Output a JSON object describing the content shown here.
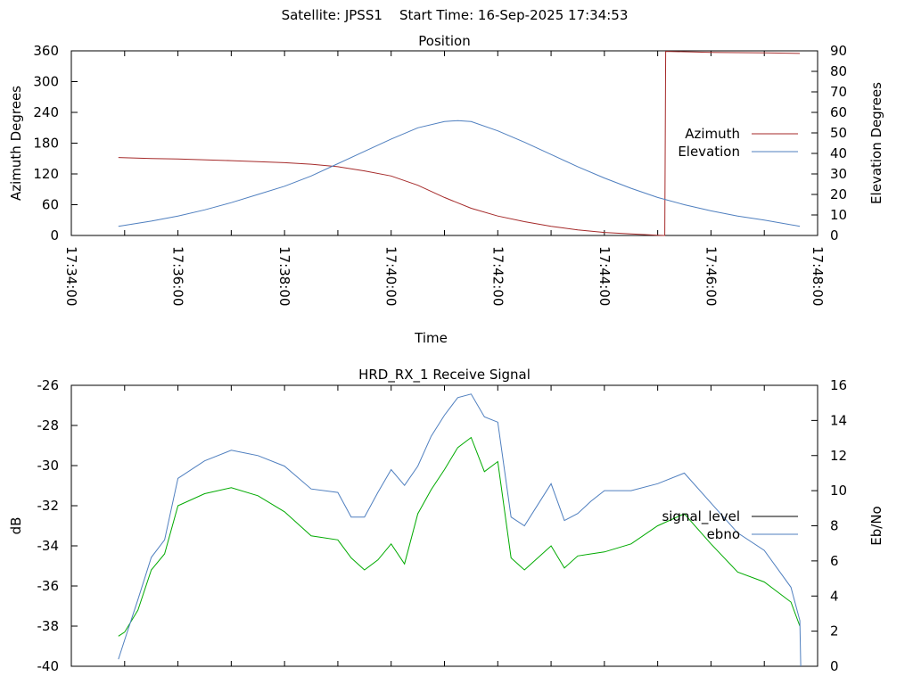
{
  "page_title": "Satellite: JPSS1    Start Time: 16-Sep-2025 17:34:53",
  "chart_data": [
    {
      "type": "line",
      "title": "Position",
      "xlabel": "Time",
      "ylabel": "Azimuth Degrees",
      "y2label": "Elevation Degrees",
      "x_ticks": [
        "17:34:00",
        "17:36:00",
        "17:38:00",
        "17:40:00",
        "17:42:00",
        "17:44:00",
        "17:46:00",
        "17:48:00"
      ],
      "xlim": [
        "17:34:00",
        "17:48:00"
      ],
      "ylim": [
        0,
        360
      ],
      "y_ticks": [
        0,
        60,
        120,
        180,
        240,
        300,
        360
      ],
      "y2lim": [
        0,
        90
      ],
      "y2_ticks": [
        0,
        10,
        20,
        30,
        40,
        50,
        60,
        70,
        80,
        90
      ],
      "grid": false,
      "legend": "right",
      "series": [
        {
          "name": "Azimuth",
          "axis": "y",
          "color": "#a52a2a",
          "x": [
            "17:34:53",
            "17:35:30",
            "17:36:00",
            "17:37:00",
            "17:38:00",
            "17:38:30",
            "17:39:00",
            "17:39:30",
            "17:40:00",
            "17:40:30",
            "17:41:00",
            "17:41:30",
            "17:42:00",
            "17:42:30",
            "17:43:00",
            "17:43:30",
            "17:44:00",
            "17:44:30",
            "17:45:00",
            "17:45:08",
            "17:45:09",
            "17:46:00",
            "17:47:00",
            "17:47:40"
          ],
          "y": [
            152,
            150,
            149,
            146,
            142,
            139,
            134,
            126,
            116,
            98,
            74,
            53,
            38,
            27,
            18,
            11,
            6,
            3,
            0.5,
            0,
            359,
            357,
            356,
            355
          ]
        },
        {
          "name": "Elevation",
          "axis": "y2",
          "color": "#4f7fbf",
          "x": [
            "17:34:53",
            "17:35:30",
            "17:36:00",
            "17:36:30",
            "17:37:00",
            "17:37:30",
            "17:38:00",
            "17:38:30",
            "17:39:00",
            "17:39:30",
            "17:40:00",
            "17:40:30",
            "17:41:00",
            "17:41:15",
            "17:41:30",
            "17:42:00",
            "17:42:30",
            "17:43:00",
            "17:43:30",
            "17:44:00",
            "17:44:30",
            "17:45:00",
            "17:45:30",
            "17:46:00",
            "17:46:30",
            "17:47:00",
            "17:47:40"
          ],
          "y": [
            4.5,
            7,
            9.5,
            12.5,
            16,
            20,
            24,
            29,
            35,
            41,
            47,
            52.5,
            55.5,
            56,
            55.5,
            51,
            45.5,
            39.5,
            33.5,
            28,
            23,
            18.5,
            15,
            12,
            9.5,
            7.5,
            4.5
          ]
        }
      ]
    },
    {
      "type": "line",
      "title": "HRD_RX_1 Receive Signal",
      "ylabel": "dB",
      "y2label": "Eb/No",
      "ylim": [
        -40,
        -26
      ],
      "y_ticks": [
        -40,
        -38,
        -36,
        -34,
        -32,
        -30,
        -28,
        -26
      ],
      "y2lim": [
        0,
        16
      ],
      "y2_ticks": [
        0,
        2,
        4,
        6,
        8,
        10,
        12,
        14,
        16
      ],
      "xlim": [
        "17:34:00",
        "17:48:00"
      ],
      "grid": false,
      "legend": "right",
      "series": [
        {
          "name": "signal_level",
          "axis": "y",
          "color": "#000000",
          "legend_color": "#000000",
          "line_color": "#00aa00",
          "x": [
            "17:34:53",
            "17:35:00",
            "17:35:15",
            "17:35:30",
            "17:35:45",
            "17:36:00",
            "17:36:30",
            "17:37:00",
            "17:37:30",
            "17:38:00",
            "17:38:30",
            "17:39:00",
            "17:39:15",
            "17:39:30",
            "17:39:45",
            "17:40:00",
            "17:40:15",
            "17:40:30",
            "17:40:45",
            "17:41:00",
            "17:41:15",
            "17:41:30",
            "17:41:45",
            "17:42:00",
            "17:42:15",
            "17:42:30",
            "17:43:00",
            "17:43:15",
            "17:43:30",
            "17:43:45",
            "17:44:00",
            "17:44:30",
            "17:45:00",
            "17:45:30",
            "17:46:00",
            "17:46:30",
            "17:47:00",
            "17:47:30",
            "17:47:40"
          ],
          "y": [
            -38.5,
            -38.3,
            -37.2,
            -35.2,
            -34.4,
            -32.0,
            -31.4,
            -31.1,
            -31.5,
            -32.3,
            -33.5,
            -33.7,
            -34.6,
            -35.2,
            -34.7,
            -33.9,
            -34.9,
            -32.4,
            -31.2,
            -30.2,
            -29.1,
            -28.6,
            -30.3,
            -29.8,
            -34.6,
            -35.2,
            -34.0,
            -35.1,
            -34.5,
            -34.4,
            -34.3,
            -33.9,
            -33.0,
            -32.4,
            -33.9,
            -35.3,
            -35.8,
            -36.8,
            -38.0
          ]
        },
        {
          "name": "ebno",
          "axis": "y2",
          "color": "#4f7fbf",
          "x": [
            "17:34:53",
            "17:35:00",
            "17:35:15",
            "17:35:30",
            "17:35:45",
            "17:36:00",
            "17:36:30",
            "17:37:00",
            "17:37:30",
            "17:38:00",
            "17:38:30",
            "17:39:00",
            "17:39:15",
            "17:39:30",
            "17:39:45",
            "17:40:00",
            "17:40:15",
            "17:40:30",
            "17:40:45",
            "17:41:00",
            "17:41:15",
            "17:41:30",
            "17:41:45",
            "17:42:00",
            "17:42:15",
            "17:42:30",
            "17:43:00",
            "17:43:15",
            "17:43:30",
            "17:43:45",
            "17:44:00",
            "17:44:30",
            "17:45:00",
            "17:45:30",
            "17:46:00",
            "17:46:30",
            "17:47:00",
            "17:47:30",
            "17:47:40",
            "17:47:41"
          ],
          "y": [
            0.4,
            1.5,
            3.8,
            6.2,
            7.2,
            10.7,
            11.7,
            12.3,
            12.0,
            11.4,
            10.1,
            9.9,
            8.5,
            8.5,
            9.9,
            11.2,
            10.3,
            11.4,
            13.1,
            14.3,
            15.3,
            15.5,
            14.2,
            13.9,
            8.5,
            8.0,
            10.4,
            8.3,
            8.7,
            9.4,
            10.0,
            10.0,
            10.4,
            11.0,
            9.3,
            7.6,
            6.6,
            4.5,
            2.6,
            0
          ]
        }
      ]
    }
  ]
}
